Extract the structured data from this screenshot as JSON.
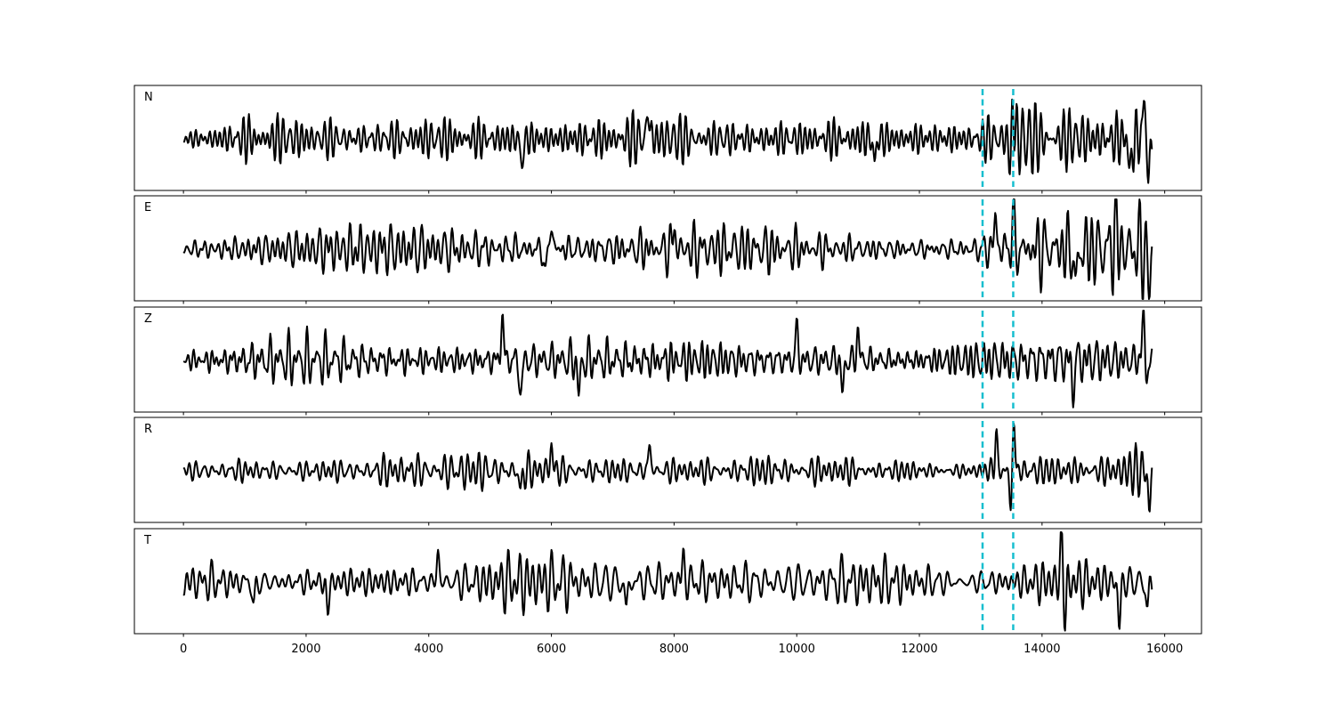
{
  "chart_data": {
    "type": "line",
    "title": "",
    "xlabel": "",
    "ylabel": "",
    "xlim": [
      -800,
      16600
    ],
    "x_ticks": [
      0,
      2000,
      4000,
      6000,
      8000,
      10000,
      12000,
      14000,
      16000
    ],
    "x_tick_labels": [
      "0",
      "2000",
      "4000",
      "6000",
      "8000",
      "10000",
      "12000",
      "14000",
      "16000"
    ],
    "n_samples": 15800,
    "grid": false,
    "legend": false,
    "pick_lines": {
      "color": "#17becf",
      "style": "dashed",
      "x": [
        13030,
        13530
      ]
    },
    "series": [
      {
        "name": "N",
        "seed": 11,
        "envelope": [
          [
            0,
            0.3
          ],
          [
            500,
            0.35
          ],
          [
            1000,
            0.6
          ],
          [
            2000,
            0.5
          ],
          [
            3000,
            0.55
          ],
          [
            5000,
            0.5
          ],
          [
            7500,
            0.6
          ],
          [
            10000,
            0.45
          ],
          [
            11000,
            0.55
          ],
          [
            13000,
            0.45
          ],
          [
            13500,
            1.0
          ],
          [
            14000,
            0.75
          ],
          [
            15000,
            0.7
          ],
          [
            15600,
            1.0
          ],
          [
            15800,
            0.5
          ]
        ],
        "spikes": [
          [
            1115,
            0.58
          ],
          [
            1120,
            -0.55
          ],
          [
            5520,
            -0.6
          ],
          [
            7580,
            0.62
          ],
          [
            11270,
            -0.5
          ],
          [
            13520,
            1.0
          ],
          [
            13490,
            -0.85
          ],
          [
            15440,
            -0.82
          ],
          [
            15660,
            0.78
          ],
          [
            15740,
            -0.8
          ]
        ]
      },
      {
        "name": "E",
        "seed": 23,
        "envelope": [
          [
            0,
            0.3
          ],
          [
            1000,
            0.45
          ],
          [
            3000,
            0.5
          ],
          [
            6000,
            0.55
          ],
          [
            8000,
            0.5
          ],
          [
            10500,
            0.4
          ],
          [
            12800,
            0.35
          ],
          [
            13200,
            0.6
          ],
          [
            13500,
            0.8
          ],
          [
            14500,
            0.7
          ],
          [
            15000,
            0.85
          ],
          [
            15800,
            0.9
          ]
        ],
        "spikes": [
          [
            6000,
            0.55
          ],
          [
            5900,
            -0.52
          ],
          [
            8000,
            0.48
          ],
          [
            13240,
            0.72
          ],
          [
            13520,
            0.62
          ],
          [
            14550,
            -0.9
          ],
          [
            15200,
            0.9
          ],
          [
            15750,
            -0.92
          ]
        ]
      },
      {
        "name": "Z",
        "seed": 37,
        "envelope": [
          [
            0,
            0.4
          ],
          [
            1000,
            0.6
          ],
          [
            2000,
            0.55
          ],
          [
            4000,
            0.5
          ],
          [
            5200,
            0.75
          ],
          [
            6000,
            0.5
          ],
          [
            8000,
            0.6
          ],
          [
            10000,
            0.55
          ],
          [
            12000,
            0.5
          ],
          [
            13500,
            0.55
          ],
          [
            14500,
            0.6
          ],
          [
            15800,
            0.7
          ]
        ],
        "spikes": [
          [
            5200,
            0.92
          ],
          [
            5500,
            -0.75
          ],
          [
            6450,
            -0.72
          ],
          [
            10000,
            0.65
          ],
          [
            10750,
            -0.68
          ],
          [
            11000,
            0.62
          ],
          [
            14500,
            -0.62
          ],
          [
            15650,
            1.0
          ],
          [
            15700,
            -0.4
          ]
        ]
      },
      {
        "name": "R",
        "seed": 53,
        "envelope": [
          [
            0,
            0.25
          ],
          [
            1000,
            0.4
          ],
          [
            3000,
            0.45
          ],
          [
            6000,
            0.5
          ],
          [
            7500,
            0.55
          ],
          [
            10000,
            0.4
          ],
          [
            12800,
            0.35
          ],
          [
            13300,
            0.7
          ],
          [
            13600,
            1.0
          ],
          [
            14000,
            0.6
          ],
          [
            15000,
            0.55
          ],
          [
            15800,
            0.8
          ]
        ],
        "spikes": [
          [
            5500,
            -0.46
          ],
          [
            6000,
            0.5
          ],
          [
            7600,
            0.55
          ],
          [
            13250,
            0.72
          ],
          [
            13540,
            0.95
          ],
          [
            13490,
            -0.72
          ],
          [
            15750,
            -0.78
          ]
        ]
      },
      {
        "name": "T",
        "seed": 71,
        "envelope": [
          [
            0,
            0.3
          ],
          [
            1000,
            0.5
          ],
          [
            3000,
            0.5
          ],
          [
            5000,
            0.6
          ],
          [
            7500,
            0.6
          ],
          [
            10000,
            0.45
          ],
          [
            12500,
            0.4
          ],
          [
            13500,
            0.55
          ],
          [
            14300,
            0.95
          ],
          [
            15000,
            0.8
          ],
          [
            15800,
            0.7
          ]
        ],
        "spikes": [
          [
            1150,
            -0.55
          ],
          [
            2350,
            -0.62
          ],
          [
            4150,
            0.58
          ],
          [
            7220,
            -0.58
          ],
          [
            8150,
            0.5
          ],
          [
            14320,
            0.92
          ],
          [
            14380,
            -0.7
          ],
          [
            15260,
            -0.88
          ],
          [
            15720,
            -0.6
          ]
        ]
      }
    ]
  }
}
